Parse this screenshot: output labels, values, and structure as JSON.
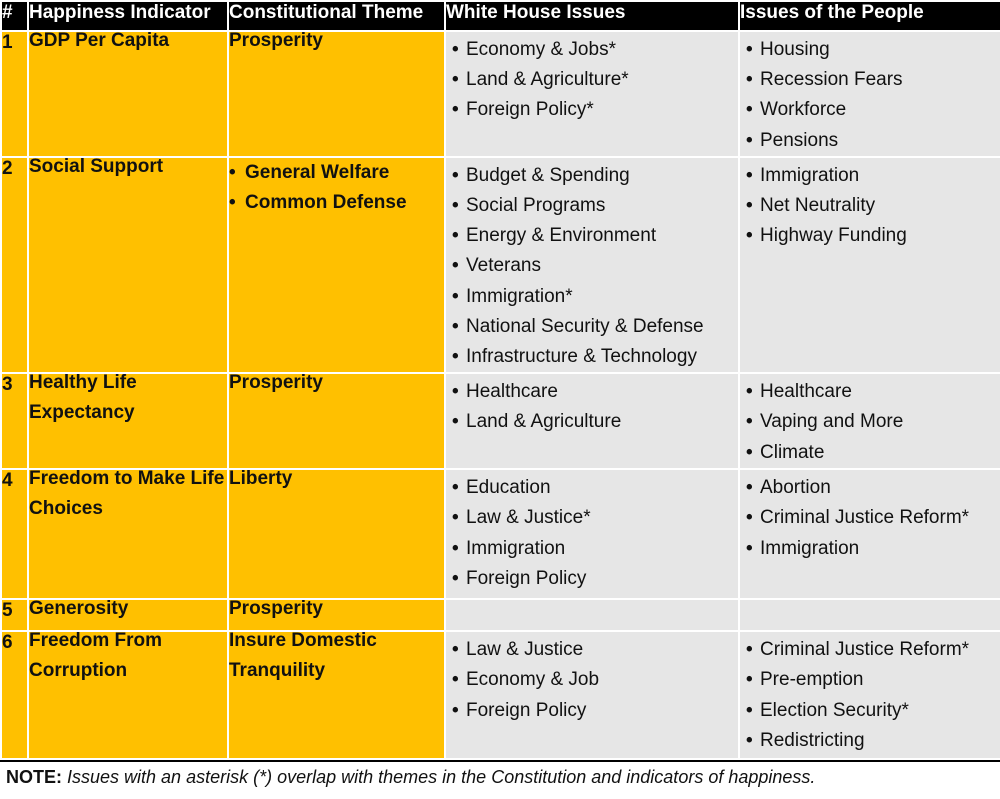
{
  "headers": [
    "#",
    "Happiness Indicator",
    "Constitutional Theme",
    "White House Issues",
    "Issues of the People"
  ],
  "rows": [
    {
      "num": "1",
      "indicator": "GDP Per Capita",
      "themes": [
        "Prosperity"
      ],
      "themes_bulleted": false,
      "white_house": [
        "Economy & Jobs*",
        "Land & Agriculture*",
        "Foreign Policy*"
      ],
      "people": [
        "Housing",
        "Recession Fears",
        "Workforce",
        "Pensions"
      ]
    },
    {
      "num": "2",
      "indicator": "Social Support",
      "themes": [
        "General Welfare",
        "Common Defense"
      ],
      "themes_bulleted": true,
      "white_house": [
        "Budget & Spending",
        "Social Programs",
        "Energy & Environment",
        "Veterans",
        "Immigration*",
        "National Security & Defense",
        "Infrastructure & Technology"
      ],
      "people": [
        "Immigration",
        "Net Neutrality",
        "Highway Funding"
      ]
    },
    {
      "num": "3",
      "indicator": "Healthy Life Expectancy",
      "themes": [
        "Prosperity"
      ],
      "themes_bulleted": false,
      "white_house": [
        "Healthcare",
        "Land & Agriculture"
      ],
      "people": [
        "Healthcare",
        "Vaping and More",
        "Climate"
      ]
    },
    {
      "num": "4",
      "indicator": "Freedom to Make Life Choices",
      "themes": [
        "Liberty"
      ],
      "themes_bulleted": false,
      "white_house": [
        "Education",
        "Law & Justice*",
        "Immigration",
        "Foreign Policy"
      ],
      "people": [
        "Abortion",
        "Criminal Justice Reform*",
        "Immigration"
      ]
    },
    {
      "num": "5",
      "indicator": "Generosity",
      "themes": [
        "Prosperity"
      ],
      "themes_bulleted": false,
      "white_house": [],
      "people": []
    },
    {
      "num": "6",
      "indicator": "Freedom From Corruption",
      "themes": [
        "Insure Domestic Tranquility"
      ],
      "themes_bulleted": false,
      "white_house": [
        "Law & Justice",
        "Economy & Job",
        "Foreign Policy"
      ],
      "people": [
        "Criminal Justice Reform*",
        "Pre-emption",
        "Election Security*",
        "Redistricting"
      ]
    }
  ],
  "note": {
    "label": "NOTE:",
    "text": "Issues with an asterisk (*) overlap with themes in the Constitution and indicators of happiness."
  }
}
